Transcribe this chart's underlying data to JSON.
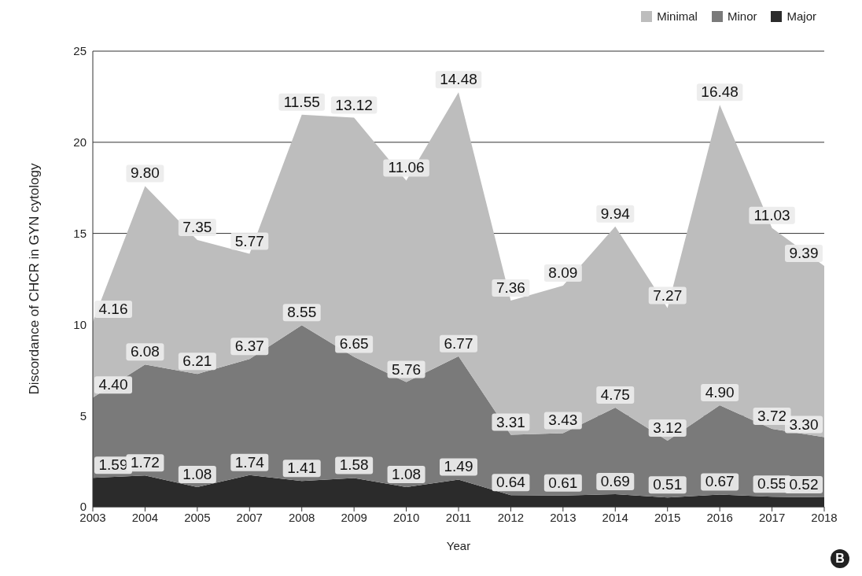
{
  "chart_data": {
    "type": "area",
    "stacked": true,
    "xlabel": "Year",
    "ylabel": "Discordance of CHCR in GYN cytology",
    "categories": [
      "2003",
      "2004",
      "2005",
      "2007",
      "2008",
      "2009",
      "2010",
      "2011",
      "2012",
      "2013",
      "2014",
      "2015",
      "2016",
      "2017",
      "2018"
    ],
    "series": [
      {
        "name": "Major",
        "color": "#2b2b2b",
        "values": [
          1.59,
          1.72,
          1.08,
          1.74,
          1.41,
          1.58,
          1.08,
          1.49,
          0.64,
          0.61,
          0.69,
          0.51,
          0.67,
          0.55,
          0.52
        ],
        "value_labels": [
          "1.59",
          "1.72",
          "1.08",
          "1.74",
          "1.41",
          "1.58",
          "1.08",
          "1.49",
          "0.64",
          "0.61",
          "0.69",
          "0.51",
          "0.67",
          "0.55",
          "0.52"
        ]
      },
      {
        "name": "Minor",
        "color": "#7a7a7a",
        "values": [
          4.4,
          6.08,
          6.21,
          6.37,
          8.55,
          6.65,
          5.76,
          6.77,
          3.31,
          3.43,
          4.75,
          3.12,
          4.9,
          3.72,
          3.3
        ],
        "value_labels": [
          "4.40",
          "6.08",
          "6.21",
          "6.37",
          "8.55",
          "6.65",
          "5.76",
          "6.77",
          "3.31",
          "3.43",
          "4.75",
          "3.12",
          "4.90",
          "3.72",
          "3.30"
        ]
      },
      {
        "name": "Minimal",
        "color": "#bdbdbd",
        "values": [
          4.16,
          9.8,
          7.35,
          5.77,
          11.55,
          13.12,
          11.06,
          14.48,
          7.36,
          8.09,
          9.94,
          7.27,
          16.48,
          11.03,
          9.39
        ],
        "value_labels": [
          "4.16",
          "9.80",
          "7.35",
          "5.77",
          "11.55",
          "13.12",
          "11.06",
          "14.48",
          "7.36",
          "8.09",
          "9.94",
          "7.27",
          "16.48",
          "11.03",
          "9.39"
        ]
      }
    ],
    "ylim": [
      0,
      25
    ],
    "yticks": [
      0,
      5,
      10,
      15,
      20,
      25
    ],
    "grid": "y",
    "legend": "top right",
    "annotations": [
      "B"
    ]
  }
}
